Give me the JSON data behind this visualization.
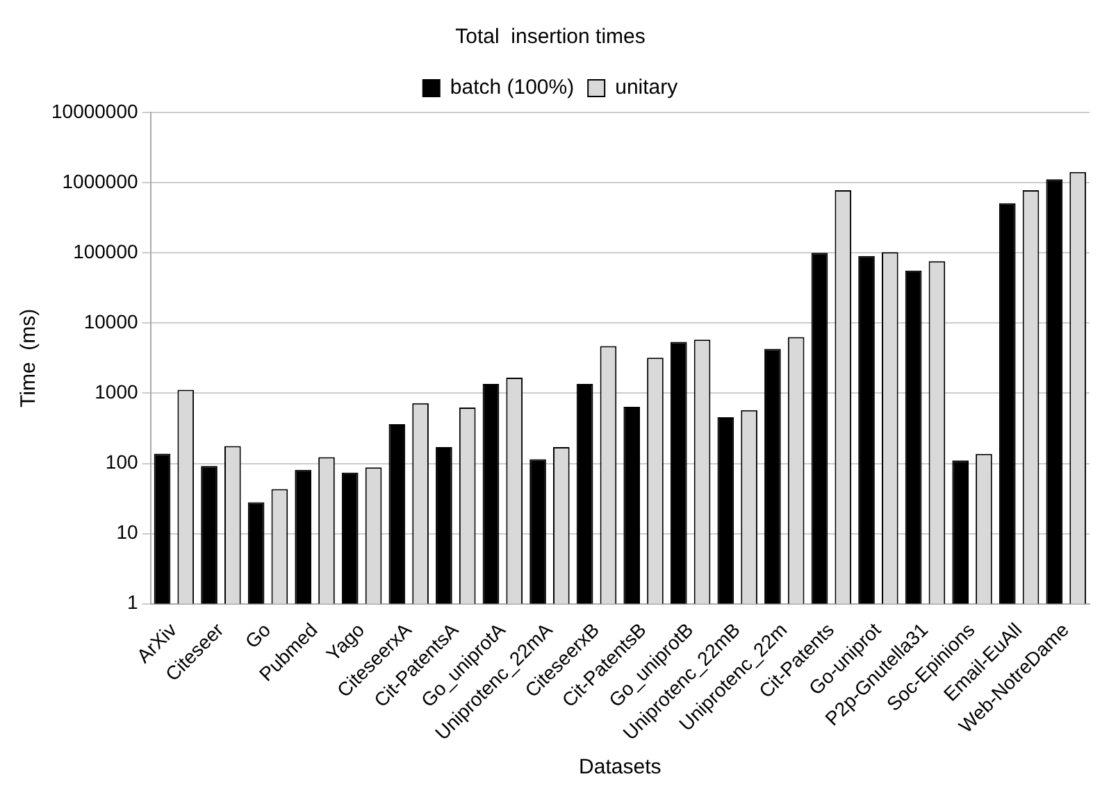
{
  "chart_data": {
    "type": "bar",
    "title": "Total  insertion times",
    "xlabel": "Datasets",
    "ylabel": "Time  (ms)",
    "categories": [
      "ArXiv",
      "Citeseer",
      "Go",
      "Pubmed",
      "Yago",
      "CiteseerxA",
      "Cit-PatentsA",
      "Go_uniprotA",
      "Uniprotenc_22mA",
      "CiteseerxB",
      "Cit-PatentsB",
      "Go_uniprotB",
      "Uniprotenc_22mB",
      "Uniprotenc_22m",
      "Cit-Patents",
      "Go-uniprot",
      "P2p-Gnutella31",
      "Soc-Epinions",
      "Email-EuAll",
      "Web-NotreDame"
    ],
    "series": [
      {
        "name": "batch (100%)",
        "color": "#000000",
        "values": [
          138,
          92,
          28,
          81,
          74,
          363,
          171,
          1360,
          115,
          1360,
          640,
          5400,
          455,
          4300,
          100000,
          90000,
          56000,
          110,
          510000,
          1120000
        ]
      },
      {
        "name": "unitary",
        "color": "#d9d9d9",
        "values": [
          1120,
          177,
          43,
          123,
          88,
          720,
          627,
          1670,
          171,
          4700,
          3200,
          5800,
          574,
          6300,
          780000,
          102000,
          76000,
          137,
          780000,
          1420000
        ]
      }
    ],
    "log": "y",
    "ylim": [
      1,
      10000000
    ],
    "yticks": [
      1,
      10,
      100,
      1000,
      10000,
      100000,
      1000000,
      10000000
    ],
    "grid": "y",
    "legend": "top"
  }
}
